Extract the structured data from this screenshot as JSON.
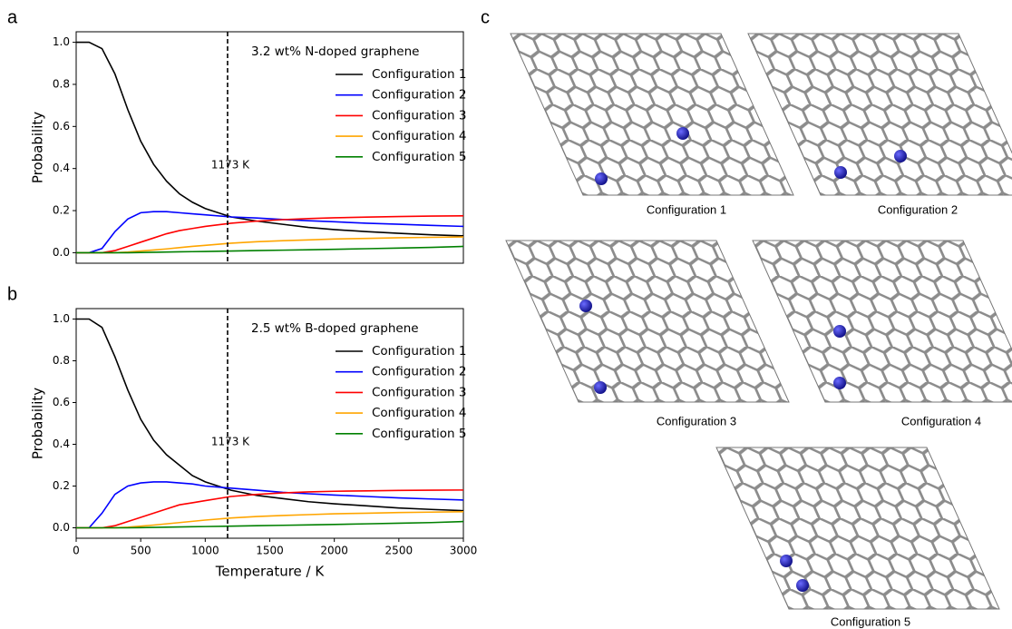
{
  "panels": [
    "a",
    "b",
    "c"
  ],
  "chart_data": [
    {
      "type": "line",
      "title": "3.2 wt% N-doped graphene",
      "ylabel": "Probability",
      "x": [
        0,
        100,
        200,
        300,
        400,
        500,
        600,
        700,
        800,
        900,
        1000,
        1200,
        1400,
        1600,
        1800,
        2000,
        2250,
        2500,
        2750,
        3000
      ],
      "series": [
        {
          "name": "Configuration 1",
          "color": "#000000",
          "values": [
            1.0,
            1.0,
            0.97,
            0.85,
            0.68,
            0.53,
            0.42,
            0.34,
            0.28,
            0.24,
            0.21,
            0.17,
            0.15,
            0.135,
            0.12,
            0.11,
            0.1,
            0.092,
            0.085,
            0.08
          ]
        },
        {
          "name": "Configuration 2",
          "color": "#0000ff",
          "values": [
            0,
            0,
            0.02,
            0.1,
            0.16,
            0.19,
            0.195,
            0.195,
            0.19,
            0.185,
            0.18,
            0.17,
            0.165,
            0.158,
            0.152,
            0.147,
            0.14,
            0.135,
            0.13,
            0.125
          ]
        },
        {
          "name": "Configuration 3",
          "color": "#ff0000",
          "values": [
            0,
            0,
            0,
            0.01,
            0.03,
            0.05,
            0.07,
            0.09,
            0.105,
            0.115,
            0.125,
            0.14,
            0.15,
            0.157,
            0.162,
            0.166,
            0.169,
            0.172,
            0.174,
            0.175
          ]
        },
        {
          "name": "Configuration 4",
          "color": "#ffa500",
          "values": [
            0,
            0,
            0,
            0,
            0.003,
            0.008,
            0.013,
            0.018,
            0.024,
            0.03,
            0.035,
            0.045,
            0.052,
            0.057,
            0.061,
            0.065,
            0.068,
            0.071,
            0.073,
            0.075
          ]
        },
        {
          "name": "Configuration 5",
          "color": "#008000",
          "values": [
            0,
            0,
            0,
            0,
            0,
            0.001,
            0.002,
            0.003,
            0.004,
            0.005,
            0.006,
            0.008,
            0.01,
            0.012,
            0.014,
            0.016,
            0.019,
            0.022,
            0.025,
            0.03
          ]
        }
      ],
      "xlim": [
        0,
        3000
      ],
      "ylim": [
        -0.05,
        1.05
      ],
      "yticks": [
        {
          "value": 0,
          "label": "0.0"
        },
        0.2,
        0.4,
        0.6,
        0.8,
        {
          "value": 1,
          "label": "1.0"
        }
      ],
      "vline": {
        "x": 1173,
        "label": "1173 K"
      }
    },
    {
      "type": "line",
      "title": "2.5 wt% B-doped graphene",
      "ylabel": "Probability",
      "xlabel": "Temperature / K",
      "x": [
        0,
        100,
        200,
        300,
        400,
        500,
        600,
        700,
        800,
        900,
        1000,
        1200,
        1400,
        1600,
        1800,
        2000,
        2250,
        2500,
        2750,
        3000
      ],
      "series": [
        {
          "name": "Configuration 1",
          "color": "#000000",
          "values": [
            1.0,
            1.0,
            0.96,
            0.82,
            0.66,
            0.52,
            0.42,
            0.35,
            0.3,
            0.25,
            0.22,
            0.18,
            0.155,
            0.14,
            0.125,
            0.115,
            0.105,
            0.095,
            0.088,
            0.082
          ]
        },
        {
          "name": "Configuration 2",
          "color": "#0000ff",
          "values": [
            0,
            0,
            0.07,
            0.16,
            0.2,
            0.215,
            0.22,
            0.22,
            0.215,
            0.21,
            0.2,
            0.19,
            0.18,
            0.17,
            0.163,
            0.157,
            0.15,
            0.143,
            0.138,
            0.133
          ]
        },
        {
          "name": "Configuration 3",
          "color": "#ff0000",
          "values": [
            0,
            0,
            0,
            0.01,
            0.03,
            0.05,
            0.07,
            0.09,
            0.11,
            0.12,
            0.13,
            0.15,
            0.16,
            0.167,
            0.172,
            0.175,
            0.177,
            0.179,
            0.18,
            0.181
          ]
        },
        {
          "name": "Configuration 4",
          "color": "#ffa500",
          "values": [
            0,
            0,
            0,
            0,
            0.003,
            0.008,
            0.013,
            0.019,
            0.025,
            0.031,
            0.037,
            0.047,
            0.054,
            0.059,
            0.063,
            0.067,
            0.07,
            0.073,
            0.075,
            0.077
          ]
        },
        {
          "name": "Configuration 5",
          "color": "#008000",
          "values": [
            0,
            0,
            0,
            0,
            0,
            0.001,
            0.002,
            0.003,
            0.004,
            0.005,
            0.006,
            0.008,
            0.01,
            0.012,
            0.014,
            0.016,
            0.019,
            0.022,
            0.025,
            0.03
          ]
        }
      ],
      "xlim": [
        0,
        3000
      ],
      "ylim": [
        -0.05,
        1.05
      ],
      "xticks": [
        0,
        500,
        1000,
        1500,
        2000,
        2500,
        3000
      ],
      "yticks": [
        {
          "value": 0,
          "label": "0.0"
        },
        0.2,
        0.4,
        0.6,
        0.8,
        {
          "value": 1,
          "label": "1.0"
        }
      ],
      "vline": {
        "x": 1173,
        "label": "1173 K"
      }
    }
  ],
  "structures": [
    "Configuration 1",
    "Configuration 2",
    "Configuration 3",
    "Configuration 4",
    "Configuration 5"
  ]
}
